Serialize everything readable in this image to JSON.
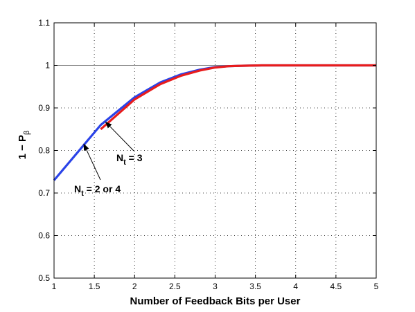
{
  "chart_data": {
    "type": "line",
    "xlabel": "Number of Feedback Bits per User",
    "ylabel_main": "1 − P",
    "ylabel_sub": "β",
    "xlim": [
      1,
      5
    ],
    "ylim": [
      0.5,
      1.1
    ],
    "x_ticks": [
      "1",
      "1.5",
      "2",
      "2.5",
      "3",
      "3.5",
      "4",
      "4.5",
      "5"
    ],
    "y_ticks": [
      "0.5",
      "0.6",
      "0.7",
      "0.8",
      "0.9",
      "1",
      "1.1"
    ],
    "grid": true,
    "reference_line_y": 1,
    "series": [
      {
        "color": "#2a43e8",
        "x": [
          1,
          1.58,
          2,
          2.32,
          2.58,
          2.81,
          3,
          3.17,
          3.32,
          3.58,
          3.81,
          4,
          5
        ],
        "y": [
          0.73,
          0.86,
          0.925,
          0.96,
          0.979,
          0.99,
          0.996,
          0.998,
          0.999,
          1.0,
          1.0,
          1.0,
          1.0
        ]
      },
      {
        "color": "#e81c1c",
        "x": [
          1.58,
          2,
          2.32,
          2.58,
          2.81,
          3,
          3.17,
          3.32,
          3.58,
          3.81,
          4,
          5
        ],
        "y": [
          0.85,
          0.92,
          0.956,
          0.976,
          0.988,
          0.995,
          0.998,
          0.999,
          1.0,
          1.0,
          1.0,
          1.0
        ]
      }
    ],
    "annotations": [
      {
        "main": "N",
        "sub": "t",
        "rest": " = 2 or 4",
        "arrow_to": [
          1.37,
          0.815
        ]
      },
      {
        "main": "N",
        "sub": "t",
        "rest": " = 3",
        "arrow_to": [
          1.64,
          0.867
        ]
      }
    ]
  }
}
